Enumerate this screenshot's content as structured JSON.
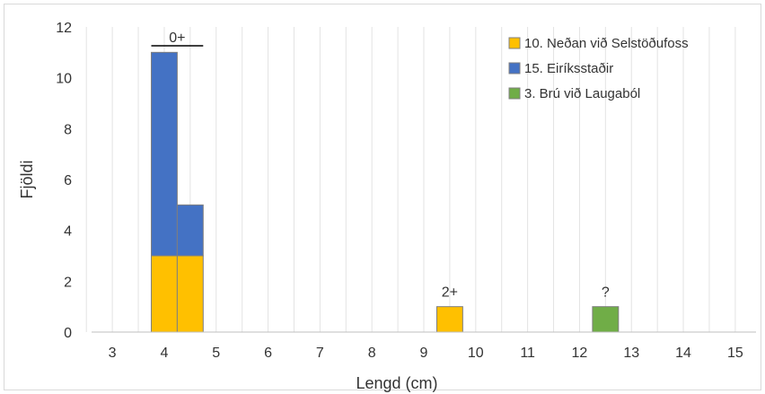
{
  "chart_data": {
    "type": "bar",
    "stacked": true,
    "xlabel": "Lengd (cm)",
    "ylabel": "Fjöldi",
    "xlim": [
      2.6,
      15.4
    ],
    "ylim": [
      0,
      12
    ],
    "x_ticks": [
      3,
      4,
      5,
      6,
      7,
      8,
      9,
      10,
      11,
      12,
      13,
      14,
      15
    ],
    "y_ticks": [
      0,
      2,
      4,
      6,
      8,
      10,
      12
    ],
    "bin_width": 0.5,
    "series": [
      {
        "name": "10. Neðan við Selstöðufoss",
        "color": "#FFC000",
        "x": [
          4.0,
          4.5,
          9.5
        ],
        "values": [
          3,
          3,
          1
        ]
      },
      {
        "name": "15. Eiríksstaðir",
        "color": "#4472C4",
        "x": [
          4.0,
          4.5
        ],
        "values": [
          8,
          2
        ]
      },
      {
        "name": "3. Brú við Laugaból",
        "color": "#70AD47",
        "x": [
          12.5
        ],
        "values": [
          1
        ]
      }
    ],
    "annotations": [
      {
        "text": "0+",
        "x": 4.25,
        "y": 11.4,
        "underline": [
          3.75,
          4.75
        ]
      },
      {
        "text": "2+",
        "x": 9.5,
        "y": 1.4
      },
      {
        "text": "?",
        "x": 12.5,
        "y": 1.4
      }
    ],
    "grid": "vertical",
    "legend_position": "top-right"
  }
}
